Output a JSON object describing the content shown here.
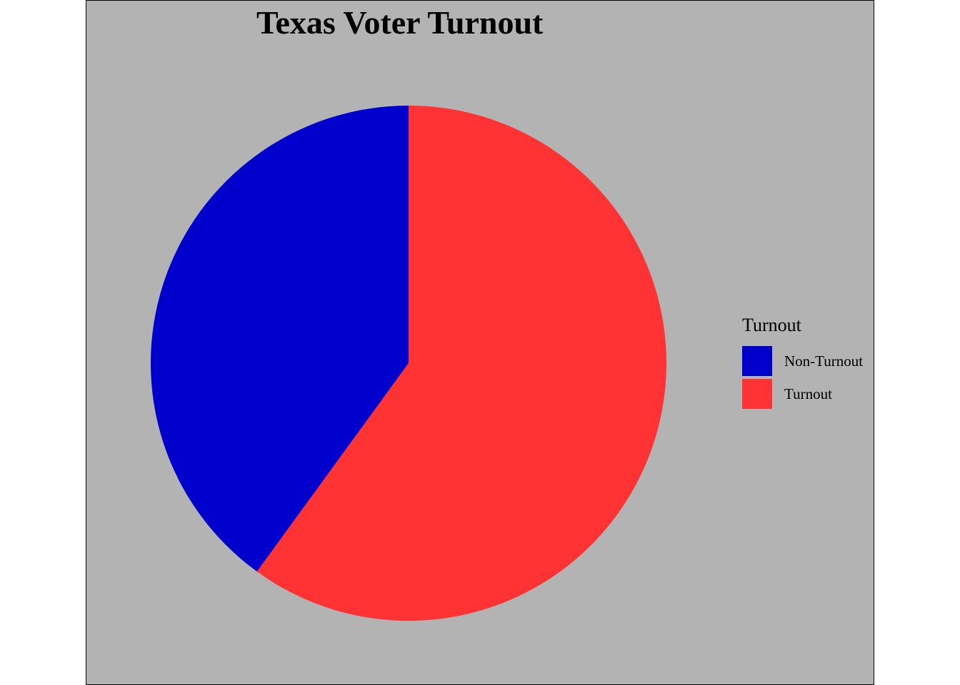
{
  "chart_data": {
    "type": "pie",
    "title": "Texas Voter Turnout",
    "legend": {
      "title": "Turnout",
      "placement": "right"
    },
    "slices": [
      {
        "label": "Non-Turnout",
        "value": 40,
        "color": "#0000CD"
      },
      {
        "label": "Turnout",
        "value": 60,
        "color": "#FF3333"
      }
    ],
    "start_angle": "12 o'clock",
    "direction": "counter-clockwise for Non-Turnout, clockwise for Turnout"
  }
}
